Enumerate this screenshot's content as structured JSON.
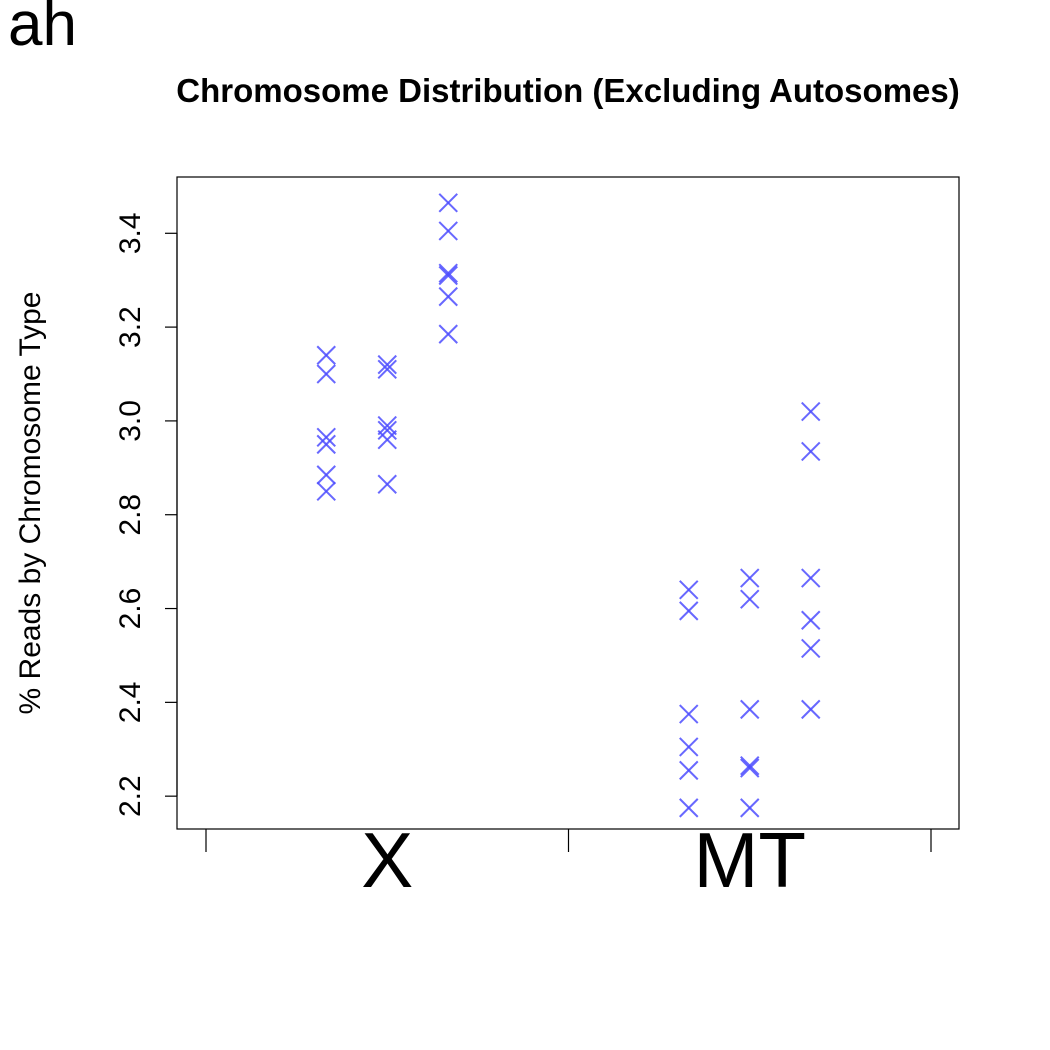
{
  "panel_label": "ah",
  "chart_data": {
    "type": "scatter",
    "title": "Chromosome Distribution (Excluding Autosomes)",
    "xlabel": "",
    "ylabel": "% Reads by Chromosome Type",
    "categories": [
      "X",
      "MT"
    ],
    "ylim": [
      2.13,
      3.52
    ],
    "yticks": [
      2.2,
      2.4,
      2.6,
      2.8,
      3.0,
      3.2,
      3.4
    ],
    "ytick_labels": [
      "2.2",
      "2.4",
      "2.6",
      "2.8",
      "3.0",
      "3.2",
      "3.4"
    ],
    "grid": false,
    "legend": "none",
    "marker_color": "#4d4dff",
    "groups": [
      {
        "category": "X",
        "subgroups": [
          [
            3.14,
            3.1,
            2.965,
            2.95,
            2.885,
            2.85
          ],
          [
            3.12,
            3.11,
            2.99,
            2.98,
            2.96,
            2.865
          ],
          [
            3.465,
            3.405,
            3.315,
            3.31,
            3.265,
            3.185
          ]
        ]
      },
      {
        "category": "MT",
        "subgroups": [
          [
            2.64,
            2.595,
            2.375,
            2.305,
            2.255,
            2.175
          ],
          [
            2.665,
            2.62,
            2.385,
            2.265,
            2.26,
            2.175
          ],
          [
            3.02,
            2.935,
            2.665,
            2.575,
            2.515,
            2.385
          ]
        ]
      }
    ]
  }
}
